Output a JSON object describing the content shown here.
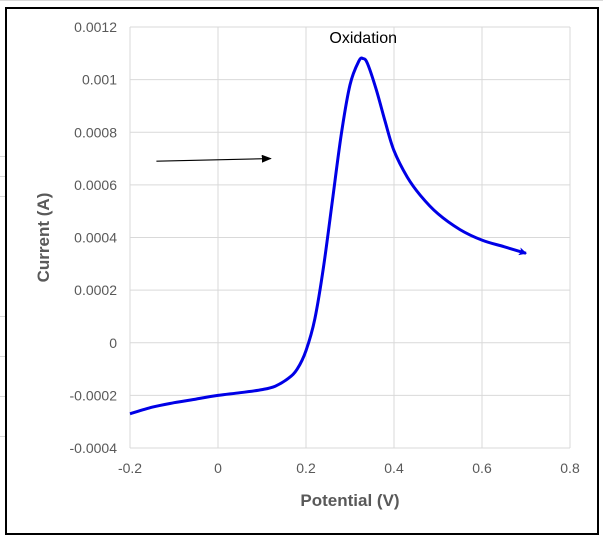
{
  "chart_data": {
    "type": "line",
    "title": "",
    "xlabel": "Potential (V)",
    "ylabel": "Current (A)",
    "xlim": [
      -0.2,
      0.8
    ],
    "ylim": [
      -0.0004,
      0.0012
    ],
    "xticks": [
      -0.2,
      0,
      0.2,
      0.4,
      0.6,
      0.8
    ],
    "xtick_labels": [
      "-0.2",
      "0",
      "0.2",
      "0.4",
      "0.6",
      "0.8"
    ],
    "yticks": [
      -0.0004,
      -0.0002,
      0,
      0.0002,
      0.0004,
      0.0006,
      0.0008,
      0.001,
      0.0012
    ],
    "ytick_labels": [
      "-0.0004",
      "-0.0002",
      "0",
      "0.0002",
      "0.0004",
      "0.0006",
      "0.0008",
      "0.001",
      "0.0012"
    ],
    "grid": true,
    "legend": "none",
    "series": [
      {
        "color": "#0000e6",
        "x": [
          -0.2,
          -0.15,
          -0.1,
          -0.05,
          0.0,
          0.05,
          0.1,
          0.13,
          0.16,
          0.18,
          0.2,
          0.22,
          0.24,
          0.26,
          0.28,
          0.3,
          0.32,
          0.33,
          0.34,
          0.36,
          0.38,
          0.4,
          0.43,
          0.46,
          0.5,
          0.55,
          0.6,
          0.65,
          0.7
        ],
        "y": [
          -0.00027,
          -0.000245,
          -0.000228,
          -0.000214,
          -0.0002,
          -0.00019,
          -0.000178,
          -0.000165,
          -0.000135,
          -0.0001,
          -3e-05,
          9e-05,
          0.00029,
          0.00054,
          0.00079,
          0.00098,
          0.00107,
          0.00108,
          0.00106,
          0.00096,
          0.00084,
          0.00073,
          0.00063,
          0.00056,
          0.00049,
          0.00043,
          0.00039,
          0.000365,
          0.00034
        ]
      }
    ],
    "annotations": [
      {
        "text": "Oxidation",
        "x": 0.33,
        "y": 0.00114
      },
      {
        "type": "arrow",
        "from": [
          -0.14,
          0.00069
        ],
        "to": [
          0.12,
          0.0007
        ]
      }
    ]
  }
}
